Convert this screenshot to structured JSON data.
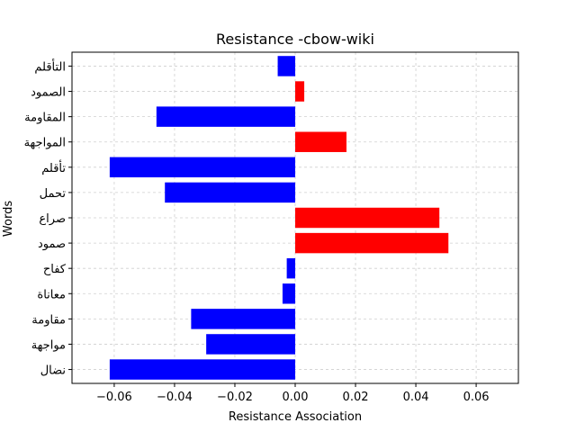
{
  "chart_data": {
    "type": "bar",
    "orientation": "horizontal",
    "title": "Resistance -cbow-wiki",
    "xlabel": "Resistance  Association",
    "ylabel": "Words",
    "categories": [
      "نضال",
      "مواجهة",
      "مقاومة",
      "معاناة",
      "كفاح",
      "صمود",
      "صراع",
      "تحمل",
      "تأقلم",
      "المواجهة",
      "المقاومة",
      "الصمود",
      "التأقلم"
    ],
    "values": [
      -0.0615,
      -0.0295,
      -0.0345,
      -0.0042,
      -0.0028,
      0.0508,
      0.0478,
      -0.0432,
      -0.0615,
      0.017,
      -0.046,
      0.003,
      -0.0058
    ],
    "xlim": [
      -0.074,
      0.074
    ],
    "xticks": [
      -0.06,
      -0.04,
      -0.02,
      0.0,
      0.02,
      0.04,
      0.06
    ],
    "xtick_labels": [
      "−0.06",
      "−0.04",
      "−0.02",
      "0.00",
      "0.02",
      "0.04",
      "0.06"
    ],
    "grid": true,
    "colors": {
      "positive": "#ff0000",
      "negative": "#0000ff"
    }
  }
}
